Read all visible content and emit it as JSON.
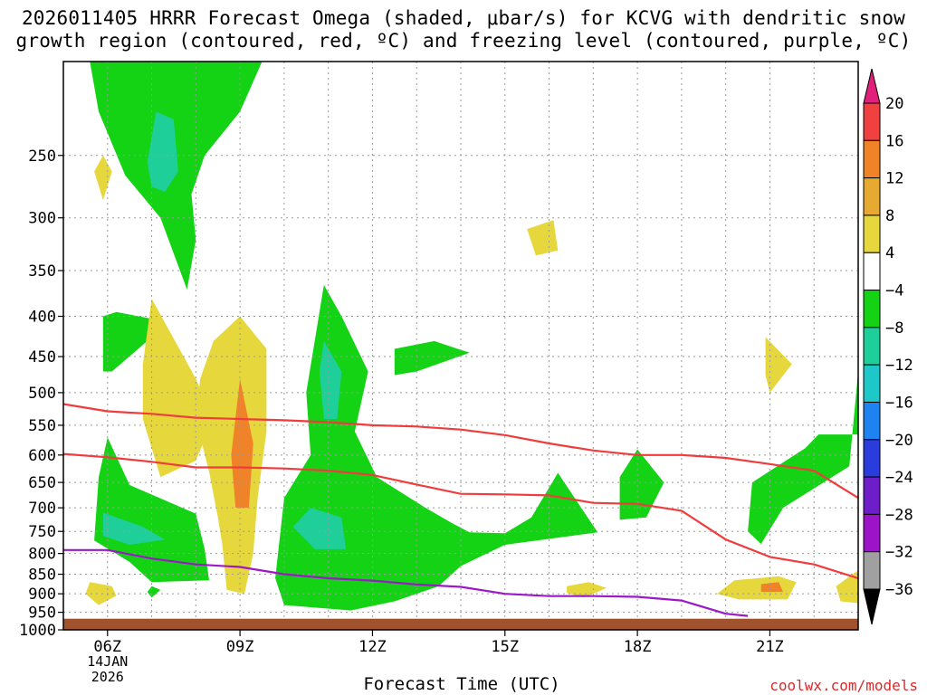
{
  "header": {
    "title_line1": "2026011405 HRRR Forecast Omega (shaded, μbar/s) for KCVG with dendritic snow",
    "title_line2": "growth region (contoured, red, ºC) and freezing level (contoured, purple, ºC)"
  },
  "footer": {
    "xlabel": "Forecast Time (UTC)",
    "credit": "coolwx.com/models",
    "date_line1": "14JAN",
    "date_line2": "2026"
  },
  "colors": {
    "ground": "#a0522d",
    "dgz_contour": "#f03c3c",
    "freezing_contour": "#9b19c8",
    "grid": "#9a9a9a"
  },
  "chart_data": {
    "type": "heatmap",
    "x_unit": "forecast hour UTC (14 Jan 2026)",
    "y_unit": "pressure (hPa)",
    "xlim": [
      5,
      23
    ],
    "ylim": [
      1000,
      190
    ],
    "y_scale": "log-pressure",
    "grid": true,
    "x_ticks": [
      {
        "value": 6,
        "label": "06Z"
      },
      {
        "value": 9,
        "label": "09Z"
      },
      {
        "value": 12,
        "label": "12Z"
      },
      {
        "value": 15,
        "label": "15Z"
      },
      {
        "value": 18,
        "label": "18Z"
      },
      {
        "value": 21,
        "label": "21Z"
      }
    ],
    "y_ticks": [
      250,
      300,
      350,
      400,
      450,
      500,
      550,
      600,
      650,
      700,
      750,
      800,
      850,
      900,
      950,
      1000
    ],
    "colorbar": {
      "labels": [
        "20",
        "16",
        "12",
        "8",
        "4",
        "−4",
        "−8",
        "−12",
        "−16",
        "−20",
        "−24",
        "−28",
        "−32",
        "−36"
      ],
      "bins": [
        {
          "color": "#e0207a"
        },
        {
          "color": "#f04040"
        },
        {
          "color": "#f08228"
        },
        {
          "color": "#e6aa32"
        },
        {
          "color": "#e6d83c"
        },
        {
          "color": "#ffffff"
        },
        {
          "color": "#14d214"
        },
        {
          "color": "#1ecf9a"
        },
        {
          "color": "#1ec8c8"
        },
        {
          "color": "#1e82f0"
        },
        {
          "color": "#2a3cdc"
        },
        {
          "color": "#6e1ec8"
        },
        {
          "color": "#9b14c8"
        },
        {
          "color": "#a0a0a0"
        },
        {
          "color": "#000000"
        }
      ]
    },
    "series": [
      {
        "points": [
          [
            5,
            517
          ],
          [
            6,
            528
          ],
          [
            7,
            532
          ],
          [
            8,
            538
          ],
          [
            9,
            540
          ],
          [
            10,
            542
          ],
          [
            11,
            545
          ],
          [
            12,
            550
          ],
          [
            13,
            552
          ],
          [
            14,
            557
          ],
          [
            15,
            566
          ],
          [
            16,
            580
          ],
          [
            17,
            592
          ],
          [
            18,
            600
          ],
          [
            19,
            600
          ],
          [
            20,
            605
          ],
          [
            21,
            616
          ],
          [
            22,
            628
          ],
          [
            23,
            680
          ]
        ]
      },
      {
        "points": [
          [
            5,
            598
          ],
          [
            6,
            604
          ],
          [
            7,
            612
          ],
          [
            8,
            622
          ],
          [
            9,
            622
          ],
          [
            10,
            624
          ],
          [
            11,
            628
          ],
          [
            12,
            636
          ],
          [
            13,
            654
          ],
          [
            14,
            672
          ],
          [
            15,
            673
          ],
          [
            16,
            675
          ],
          [
            17,
            690
          ],
          [
            18,
            692
          ],
          [
            19,
            706
          ],
          [
            20,
            768
          ],
          [
            21,
            808
          ],
          [
            22,
            826
          ],
          [
            23,
            860
          ]
        ]
      },
      {
        "points": [
          [
            5,
            792
          ],
          [
            6,
            792
          ],
          [
            7,
            812
          ],
          [
            8,
            826
          ],
          [
            9,
            832
          ],
          [
            10,
            850
          ],
          [
            11,
            860
          ],
          [
            12,
            866
          ],
          [
            13,
            876
          ],
          [
            14,
            882
          ],
          [
            15,
            900
          ],
          [
            16,
            906
          ],
          [
            17,
            906
          ],
          [
            18,
            908
          ],
          [
            19,
            918
          ],
          [
            20,
            954
          ],
          [
            20.5,
            960
          ]
        ]
      }
    ],
    "shaded_regions": [
      {
        "level": "-4",
        "points": [
          [
            5.6,
            190
          ],
          [
            9.5,
            190
          ],
          [
            9,
            220
          ],
          [
            8.2,
            250
          ],
          [
            7.9,
            280
          ],
          [
            8,
            320
          ],
          [
            7.8,
            370
          ],
          [
            7.2,
            300
          ],
          [
            6.4,
            265
          ],
          [
            5.8,
            220
          ]
        ]
      },
      {
        "level": "-8",
        "points": [
          [
            6.9,
            255
          ],
          [
            7.1,
            220
          ],
          [
            7.5,
            225
          ],
          [
            7.6,
            262
          ],
          [
            7.3,
            278
          ],
          [
            7,
            274
          ]
        ]
      },
      {
        "level": "4",
        "points": [
          [
            5.7,
            262
          ],
          [
            5.9,
            250
          ],
          [
            6.1,
            262
          ],
          [
            5.9,
            285
          ]
        ]
      },
      {
        "level": "4",
        "points": [
          [
            15.5,
            310
          ],
          [
            16.1,
            302
          ],
          [
            16.2,
            330
          ],
          [
            15.7,
            335
          ]
        ]
      },
      {
        "level": "-4",
        "points": [
          [
            6.9,
            430
          ],
          [
            6.1,
            470
          ],
          [
            5.9,
            470
          ],
          [
            5.9,
            400
          ],
          [
            6.2,
            395
          ],
          [
            7.0,
            403
          ],
          [
            7.2,
            418
          ]
        ]
      },
      {
        "level": "4",
        "points": [
          [
            7,
            380
          ],
          [
            8,
            480
          ],
          [
            8.4,
            540
          ],
          [
            8,
            610
          ],
          [
            7.2,
            640
          ],
          [
            6.8,
            540
          ],
          [
            6.8,
            460
          ]
        ]
      },
      {
        "level": "4",
        "points": [
          [
            9,
            400
          ],
          [
            9.6,
            440
          ],
          [
            9.6,
            560
          ],
          [
            9.4,
            680
          ],
          [
            9.3,
            800
          ],
          [
            9.1,
            900
          ],
          [
            8.7,
            890
          ],
          [
            8.6,
            780
          ],
          [
            8.5,
            720
          ],
          [
            8.3,
            630
          ],
          [
            8,
            540
          ],
          [
            8.1,
            480
          ],
          [
            8.4,
            430
          ]
        ]
      },
      {
        "level": "12",
        "points": [
          [
            9,
            480
          ],
          [
            9.3,
            580
          ],
          [
            9.2,
            700
          ],
          [
            8.9,
            700
          ],
          [
            8.8,
            600
          ]
        ]
      },
      {
        "level": "-4",
        "points": [
          [
            10.9,
            365
          ],
          [
            11.3,
            400
          ],
          [
            11.9,
            470
          ],
          [
            11.6,
            560
          ],
          [
            12.1,
            640
          ],
          [
            13.2,
            700
          ],
          [
            13.8,
            732
          ],
          [
            14.2,
            752
          ],
          [
            15,
            754
          ],
          [
            15.6,
            720
          ],
          [
            16.2,
            632
          ],
          [
            16.8,
            710
          ],
          [
            17.1,
            752
          ],
          [
            15,
            780
          ],
          [
            14,
            830
          ],
          [
            13.5,
            880
          ],
          [
            12.5,
            920
          ],
          [
            11.5,
            945
          ],
          [
            10,
            930
          ],
          [
            9.8,
            860
          ],
          [
            10,
            680
          ],
          [
            10.6,
            600
          ],
          [
            10.5,
            500
          ]
        ]
      },
      {
        "level": "-8",
        "points": [
          [
            10.9,
            430
          ],
          [
            11.3,
            470
          ],
          [
            11.2,
            540
          ],
          [
            10.9,
            540
          ],
          [
            10.8,
            470
          ]
        ]
      },
      {
        "level": "-8",
        "points": [
          [
            10.6,
            700
          ],
          [
            11.3,
            720
          ],
          [
            11.4,
            790
          ],
          [
            10.7,
            790
          ],
          [
            10.2,
            740
          ]
        ]
      },
      {
        "level": "-4",
        "points": [
          [
            12.5,
            440
          ],
          [
            13.4,
            430
          ],
          [
            14.2,
            445
          ],
          [
            13,
            470
          ],
          [
            12.5,
            475
          ]
        ]
      },
      {
        "level": "-4",
        "points": [
          [
            6,
            570
          ],
          [
            6.5,
            655
          ],
          [
            8,
            712
          ],
          [
            8.2,
            790
          ],
          [
            8.3,
            865
          ],
          [
            7,
            870
          ],
          [
            6.5,
            820
          ],
          [
            5.7,
            770
          ],
          [
            5.8,
            640
          ]
        ]
      },
      {
        "level": "-8",
        "points": [
          [
            5.9,
            710
          ],
          [
            6.8,
            740
          ],
          [
            7.3,
            768
          ],
          [
            6.5,
            780
          ],
          [
            5.9,
            760
          ]
        ]
      },
      {
        "level": "4",
        "points": [
          [
            5.6,
            870
          ],
          [
            6.1,
            880
          ],
          [
            6.2,
            905
          ],
          [
            5.8,
            930
          ],
          [
            5.5,
            900
          ]
        ]
      },
      {
        "level": "-4",
        "points": [
          [
            7.0,
            880
          ],
          [
            7.2,
            890
          ],
          [
            7.0,
            910
          ],
          [
            6.9,
            895
          ]
        ]
      },
      {
        "level": "-4",
        "points": [
          [
            17.6,
            640
          ],
          [
            18,
            590
          ],
          [
            18.6,
            650
          ],
          [
            18.2,
            720
          ],
          [
            17.6,
            725
          ]
        ]
      },
      {
        "level": "4",
        "points": [
          [
            16.4,
            880
          ],
          [
            16.9,
            870
          ],
          [
            17.3,
            885
          ],
          [
            16.8,
            910
          ],
          [
            16.4,
            898
          ]
        ]
      },
      {
        "level": "-4",
        "points": [
          [
            20.6,
            650
          ],
          [
            21.8,
            588
          ],
          [
            22.1,
            565
          ],
          [
            23,
            565
          ],
          [
            23,
            470
          ],
          [
            22.8,
            620
          ],
          [
            21.3,
            700
          ],
          [
            20.8,
            778
          ],
          [
            20.5,
            750
          ]
        ]
      },
      {
        "level": "4",
        "points": [
          [
            20.9,
            425
          ],
          [
            21.5,
            460
          ],
          [
            21.0,
            500
          ],
          [
            20.9,
            475
          ]
        ]
      },
      {
        "level": "4",
        "points": [
          [
            19.8,
            900
          ],
          [
            20.2,
            865
          ],
          [
            21.2,
            855
          ],
          [
            21.6,
            870
          ],
          [
            21.4,
            915
          ],
          [
            20.3,
            915
          ]
        ]
      },
      {
        "level": "12",
        "points": [
          [
            20.8,
            875
          ],
          [
            21.2,
            870
          ],
          [
            21.3,
            895
          ],
          [
            20.8,
            895
          ]
        ]
      },
      {
        "level": "4",
        "points": [
          [
            22.5,
            880
          ],
          [
            23,
            840
          ],
          [
            23,
            925
          ],
          [
            22.6,
            920
          ]
        ]
      }
    ]
  }
}
